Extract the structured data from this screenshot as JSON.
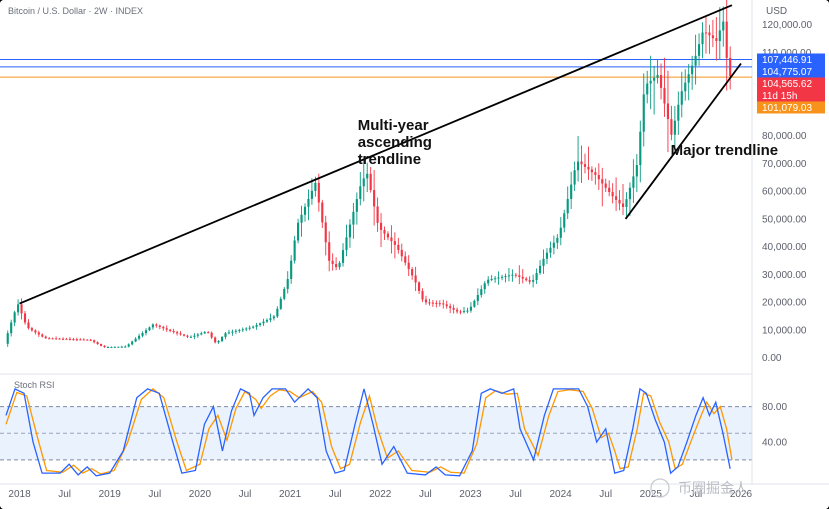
{
  "header": {
    "title": "Bitcoin / U.S. Dollar · 2W · INDEX",
    "currency": "USD"
  },
  "chart_data": {
    "type": "candlestick",
    "title": "Bitcoin / U.S. Dollar · 2W · INDEX",
    "y_axis": {
      "label": "USD",
      "ticks": [
        0,
        10000,
        20000,
        30000,
        40000,
        50000,
        60000,
        70000,
        80000,
        90000,
        100000,
        110000,
        120000
      ],
      "tick_labels": [
        "0.00",
        "10,000.00",
        "20,000.00",
        "30,000.00",
        "40,000.00",
        "50,000.00",
        "60,000.00",
        "70,000.00",
        "80,000.00",
        "90,000.00",
        "100,000.00",
        "110,000.00",
        "120,000.00"
      ],
      "range": [
        -3000,
        126000
      ]
    },
    "x_axis": {
      "tick_labels": [
        "2018",
        "Jul",
        "2019",
        "Jul",
        "2020",
        "Jul",
        "2021",
        "Jul",
        "2022",
        "Jul",
        "2023",
        "Jul",
        "2024",
        "Jul",
        "2025",
        "Jul",
        "2026"
      ],
      "tick_dates": [
        2018.0,
        2018.5,
        2019.0,
        2019.5,
        2020.0,
        2020.5,
        2021.0,
        2021.5,
        2022.0,
        2022.5,
        2023.0,
        2023.5,
        2024.0,
        2024.5,
        2025.0,
        2025.5,
        2026.0
      ],
      "range": [
        2017.85,
        2026.1
      ]
    },
    "candle_interval": "2W",
    "price_path": [
      [
        2017.85,
        5000
      ],
      [
        2017.95,
        15000
      ],
      [
        2018.0,
        19500
      ],
      [
        2018.1,
        11000
      ],
      [
        2018.2,
        9000
      ],
      [
        2018.3,
        7000
      ],
      [
        2018.5,
        6800
      ],
      [
        2018.8,
        6400
      ],
      [
        2018.95,
        3800
      ],
      [
        2019.2,
        4000
      ],
      [
        2019.35,
        8000
      ],
      [
        2019.5,
        12000
      ],
      [
        2019.7,
        9500
      ],
      [
        2019.9,
        7300
      ],
      [
        2020.1,
        9500
      ],
      [
        2020.2,
        5000
      ],
      [
        2020.3,
        8800
      ],
      [
        2020.6,
        11000
      ],
      [
        2020.85,
        15000
      ],
      [
        2021.0,
        29000
      ],
      [
        2021.1,
        48000
      ],
      [
        2021.3,
        63000
      ],
      [
        2021.45,
        35000
      ],
      [
        2021.55,
        32000
      ],
      [
        2021.8,
        62000
      ],
      [
        2021.87,
        67000
      ],
      [
        2022.0,
        47000
      ],
      [
        2022.2,
        40000
      ],
      [
        2022.4,
        28000
      ],
      [
        2022.5,
        20000
      ],
      [
        2022.7,
        19500
      ],
      [
        2022.88,
        16500
      ],
      [
        2023.0,
        17000
      ],
      [
        2023.2,
        28000
      ],
      [
        2023.5,
        30000
      ],
      [
        2023.7,
        27000
      ],
      [
        2023.85,
        37000
      ],
      [
        2024.0,
        44000
      ],
      [
        2024.2,
        71000
      ],
      [
        2024.4,
        66000
      ],
      [
        2024.6,
        58000
      ],
      [
        2024.72,
        54000
      ],
      [
        2024.87,
        70000
      ],
      [
        2024.95,
        98000
      ],
      [
        2025.1,
        102000
      ],
      [
        2025.25,
        80000
      ],
      [
        2025.35,
        95000
      ],
      [
        2025.5,
        107000
      ],
      [
        2025.6,
        118000
      ],
      [
        2025.75,
        114000
      ],
      [
        2025.82,
        122000
      ],
      [
        2025.88,
        101500
      ]
    ],
    "price_labels": [
      {
        "text": "107,446.91",
        "value": 107446.91,
        "color": "#2962ff"
      },
      {
        "text": "104,775.07",
        "value": 104775.07,
        "color": "#2962ff"
      },
      {
        "text": "104,565.62",
        "value": 104565.62,
        "color": "#f23645"
      },
      {
        "text": "11d 15h",
        "value": 101800,
        "color": "#f23645"
      },
      {
        "text": "101,079.03",
        "value": 101079.03,
        "color": "#f7931a"
      }
    ],
    "horizontal_lines": [
      {
        "value": 107446.91,
        "color": "#2962ff"
      },
      {
        "value": 104775.07,
        "color": "#2962ff"
      },
      {
        "value": 101079.03,
        "color": "#f7931a"
      }
    ],
    "trendlines": [
      {
        "name": "multi-year-ascending-trendline",
        "points": [
          [
            2018.0,
            19500
          ],
          [
            2025.9,
            127000
          ]
        ]
      },
      {
        "name": "major-trendline",
        "points": [
          [
            2024.72,
            50000
          ],
          [
            2026.0,
            106000
          ]
        ]
      }
    ],
    "annotations": [
      {
        "lines": [
          "Multi-year",
          "ascending",
          "trendline"
        ],
        "anchor": [
          2021.75,
          82000
        ]
      },
      {
        "lines": [
          "Major trendline"
        ],
        "anchor": [
          2025.22,
          73000
        ]
      }
    ],
    "stoch_rsi": {
      "label": "Stoch RSI",
      "ticks": [
        40,
        80
      ],
      "tick_labels": [
        "40.00",
        "80.00"
      ],
      "band": [
        20,
        80
      ],
      "midline": 50,
      "range": [
        -5,
        110
      ],
      "k_color": "#2962ff",
      "d_color": "#ff9800",
      "k_path": [
        [
          2017.85,
          70
        ],
        [
          2017.95,
          100
        ],
        [
          2018.05,
          95
        ],
        [
          2018.15,
          40
        ],
        [
          2018.25,
          5
        ],
        [
          2018.45,
          5
        ],
        [
          2018.55,
          15
        ],
        [
          2018.65,
          3
        ],
        [
          2018.75,
          12
        ],
        [
          2018.85,
          2
        ],
        [
          2019.0,
          5
        ],
        [
          2019.15,
          30
        ],
        [
          2019.3,
          90
        ],
        [
          2019.42,
          100
        ],
        [
          2019.55,
          95
        ],
        [
          2019.7,
          40
        ],
        [
          2019.8,
          5
        ],
        [
          2019.95,
          8
        ],
        [
          2020.05,
          60
        ],
        [
          2020.15,
          80
        ],
        [
          2020.25,
          30
        ],
        [
          2020.35,
          75
        ],
        [
          2020.45,
          100
        ],
        [
          2020.55,
          95
        ],
        [
          2020.6,
          70
        ],
        [
          2020.7,
          90
        ],
        [
          2020.8,
          100
        ],
        [
          2020.95,
          100
        ],
        [
          2021.05,
          85
        ],
        [
          2021.2,
          100
        ],
        [
          2021.3,
          90
        ],
        [
          2021.4,
          30
        ],
        [
          2021.5,
          5
        ],
        [
          2021.6,
          8
        ],
        [
          2021.72,
          60
        ],
        [
          2021.82,
          100
        ],
        [
          2021.92,
          60
        ],
        [
          2022.02,
          15
        ],
        [
          2022.15,
          35
        ],
        [
          2022.3,
          5
        ],
        [
          2022.5,
          3
        ],
        [
          2022.62,
          12
        ],
        [
          2022.72,
          3
        ],
        [
          2022.88,
          2
        ],
        [
          2023.02,
          30
        ],
        [
          2023.12,
          95
        ],
        [
          2023.22,
          100
        ],
        [
          2023.35,
          95
        ],
        [
          2023.48,
          100
        ],
        [
          2023.55,
          55
        ],
        [
          2023.7,
          20
        ],
        [
          2023.82,
          70
        ],
        [
          2023.92,
          100
        ],
        [
          2024.05,
          100
        ],
        [
          2024.2,
          100
        ],
        [
          2024.3,
          80
        ],
        [
          2024.4,
          40
        ],
        [
          2024.5,
          55
        ],
        [
          2024.55,
          30
        ],
        [
          2024.6,
          5
        ],
        [
          2024.7,
          8
        ],
        [
          2024.8,
          55
        ],
        [
          2024.88,
          100
        ],
        [
          2024.95,
          95
        ],
        [
          2025.05,
          65
        ],
        [
          2025.15,
          40
        ],
        [
          2025.22,
          5
        ],
        [
          2025.3,
          12
        ],
        [
          2025.4,
          40
        ],
        [
          2025.5,
          70
        ],
        [
          2025.58,
          90
        ],
        [
          2025.65,
          70
        ],
        [
          2025.72,
          85
        ],
        [
          2025.8,
          50
        ],
        [
          2025.88,
          10
        ]
      ],
      "d_path": [
        [
          2017.85,
          60
        ],
        [
          2017.97,
          96
        ],
        [
          2018.08,
          92
        ],
        [
          2018.2,
          45
        ],
        [
          2018.3,
          8
        ],
        [
          2018.48,
          6
        ],
        [
          2018.6,
          14
        ],
        [
          2018.7,
          5
        ],
        [
          2018.8,
          10
        ],
        [
          2018.9,
          4
        ],
        [
          2019.05,
          8
        ],
        [
          2019.2,
          40
        ],
        [
          2019.35,
          88
        ],
        [
          2019.48,
          100
        ],
        [
          2019.6,
          90
        ],
        [
          2019.74,
          42
        ],
        [
          2019.85,
          8
        ],
        [
          2020.0,
          15
        ],
        [
          2020.1,
          55
        ],
        [
          2020.2,
          70
        ],
        [
          2020.3,
          42
        ],
        [
          2020.4,
          78
        ],
        [
          2020.5,
          97
        ],
        [
          2020.62,
          88
        ],
        [
          2020.68,
          78
        ],
        [
          2020.78,
          92
        ],
        [
          2020.88,
          99
        ],
        [
          2021.0,
          97
        ],
        [
          2021.1,
          90
        ],
        [
          2021.25,
          97
        ],
        [
          2021.35,
          85
        ],
        [
          2021.46,
          35
        ],
        [
          2021.56,
          10
        ],
        [
          2021.66,
          15
        ],
        [
          2021.78,
          62
        ],
        [
          2021.88,
          92
        ],
        [
          2021.97,
          55
        ],
        [
          2022.08,
          22
        ],
        [
          2022.2,
          30
        ],
        [
          2022.35,
          8
        ],
        [
          2022.55,
          6
        ],
        [
          2022.67,
          12
        ],
        [
          2022.78,
          6
        ],
        [
          2022.93,
          5
        ],
        [
          2023.07,
          38
        ],
        [
          2023.17,
          90
        ],
        [
          2023.28,
          98
        ],
        [
          2023.4,
          94
        ],
        [
          2023.52,
          95
        ],
        [
          2023.6,
          55
        ],
        [
          2023.75,
          25
        ],
        [
          2023.87,
          70
        ],
        [
          2023.97,
          97
        ],
        [
          2024.1,
          99
        ],
        [
          2024.25,
          97
        ],
        [
          2024.35,
          78
        ],
        [
          2024.45,
          45
        ],
        [
          2024.53,
          50
        ],
        [
          2024.6,
          30
        ],
        [
          2024.66,
          10
        ],
        [
          2024.75,
          12
        ],
        [
          2024.85,
          55
        ],
        [
          2024.92,
          95
        ],
        [
          2025.0,
          92
        ],
        [
          2025.1,
          62
        ],
        [
          2025.2,
          40
        ],
        [
          2025.27,
          10
        ],
        [
          2025.35,
          15
        ],
        [
          2025.45,
          42
        ],
        [
          2025.55,
          68
        ],
        [
          2025.62,
          85
        ],
        [
          2025.7,
          72
        ],
        [
          2025.77,
          80
        ],
        [
          2025.84,
          55
        ],
        [
          2025.9,
          20
        ]
      ]
    }
  },
  "watermark": {
    "text": "币圈掘金人"
  }
}
